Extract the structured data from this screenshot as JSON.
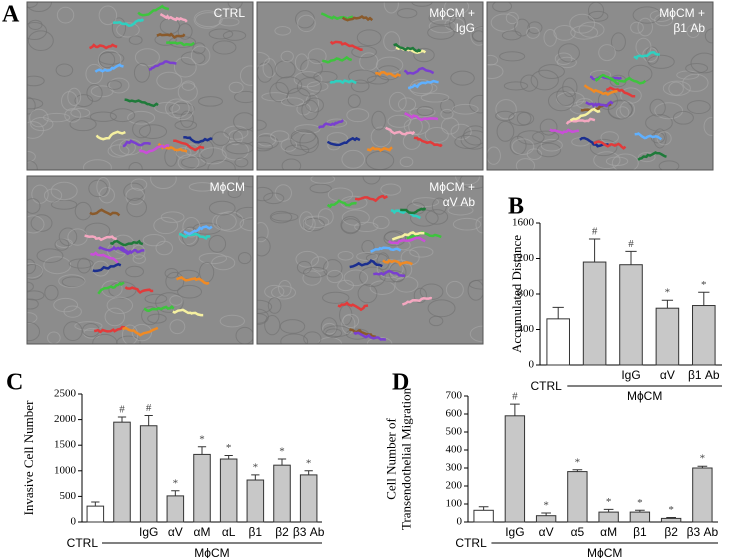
{
  "panel_a": {
    "letter": "A",
    "images": [
      {
        "label": [
          "CTRL"
        ]
      },
      {
        "label": [
          "MϕCM +",
          "IgG"
        ]
      },
      {
        "label": [
          "MϕCM +",
          "β1 Ab"
        ]
      },
      {
        "label": [
          "MϕCM"
        ]
      },
      {
        "label": [
          "MϕCM +",
          "αV Ab"
        ]
      }
    ]
  },
  "chart_data": [
    {
      "type": "bar",
      "letter": "B",
      "y_label": [
        "Accumulated Distance"
      ],
      "categories": [
        "CTRL",
        null,
        "IgG",
        "αV",
        "β1 Ab"
      ],
      "values": [
        520,
        1160,
        1130,
        640,
        670
      ],
      "errors": [
        130,
        260,
        150,
        90,
        150
      ],
      "markers": [
        null,
        "#",
        "#",
        "*",
        "*"
      ],
      "colors": [
        "#ffffff",
        "#c8c8c8",
        "#c8c8c8",
        "#c8c8c8",
        "#c8c8c8"
      ],
      "group_label": "MϕCM",
      "ylim": [
        0,
        1600
      ],
      "yticks": [
        0,
        400,
        800,
        1200,
        1600
      ]
    },
    {
      "type": "bar",
      "letter": "C",
      "y_label": [
        "Invasive Cell Number"
      ],
      "categories": [
        "CTRL",
        null,
        "IgG",
        "αV",
        "αM",
        "αL",
        "β1",
        "β2",
        "β3 Ab"
      ],
      "values": [
        310,
        1950,
        1880,
        510,
        1320,
        1230,
        820,
        1110,
        920
      ],
      "errors": [
        80,
        100,
        200,
        100,
        150,
        70,
        100,
        120,
        80
      ],
      "markers": [
        null,
        "#",
        "#",
        "*",
        "*",
        "*",
        "*",
        "*",
        "*"
      ],
      "colors": [
        "#ffffff",
        "#c8c8c8",
        "#c8c8c8",
        "#c8c8c8",
        "#c8c8c8",
        "#c8c8c8",
        "#c8c8c8",
        "#c8c8c8",
        "#c8c8c8"
      ],
      "group_label": "MϕCM",
      "ylim": [
        0,
        2500
      ],
      "yticks": [
        0,
        500,
        1000,
        1500,
        2000,
        2500
      ]
    },
    {
      "type": "bar",
      "letter": "D",
      "y_label": [
        "Cell Number of",
        "Transendothelial Migration"
      ],
      "categories": [
        "CTRL",
        "IgG",
        "αV",
        "α5",
        "αM",
        "β1",
        "β2",
        "β3 Ab"
      ],
      "values": [
        65,
        590,
        35,
        280,
        55,
        55,
        20,
        300
      ],
      "errors": [
        20,
        65,
        15,
        10,
        15,
        10,
        5,
        10
      ],
      "markers": [
        null,
        "#",
        "*",
        "*",
        "*",
        "*",
        "*",
        "*"
      ],
      "colors": [
        "#ffffff",
        "#c8c8c8",
        "#c8c8c8",
        "#c8c8c8",
        "#c8c8c8",
        "#c8c8c8",
        "#c8c8c8",
        "#c8c8c8"
      ],
      "group_label": "MϕCM",
      "ylim": [
        0,
        700
      ],
      "yticks": [
        0,
        100,
        200,
        300,
        400,
        500,
        600,
        700
      ]
    }
  ]
}
